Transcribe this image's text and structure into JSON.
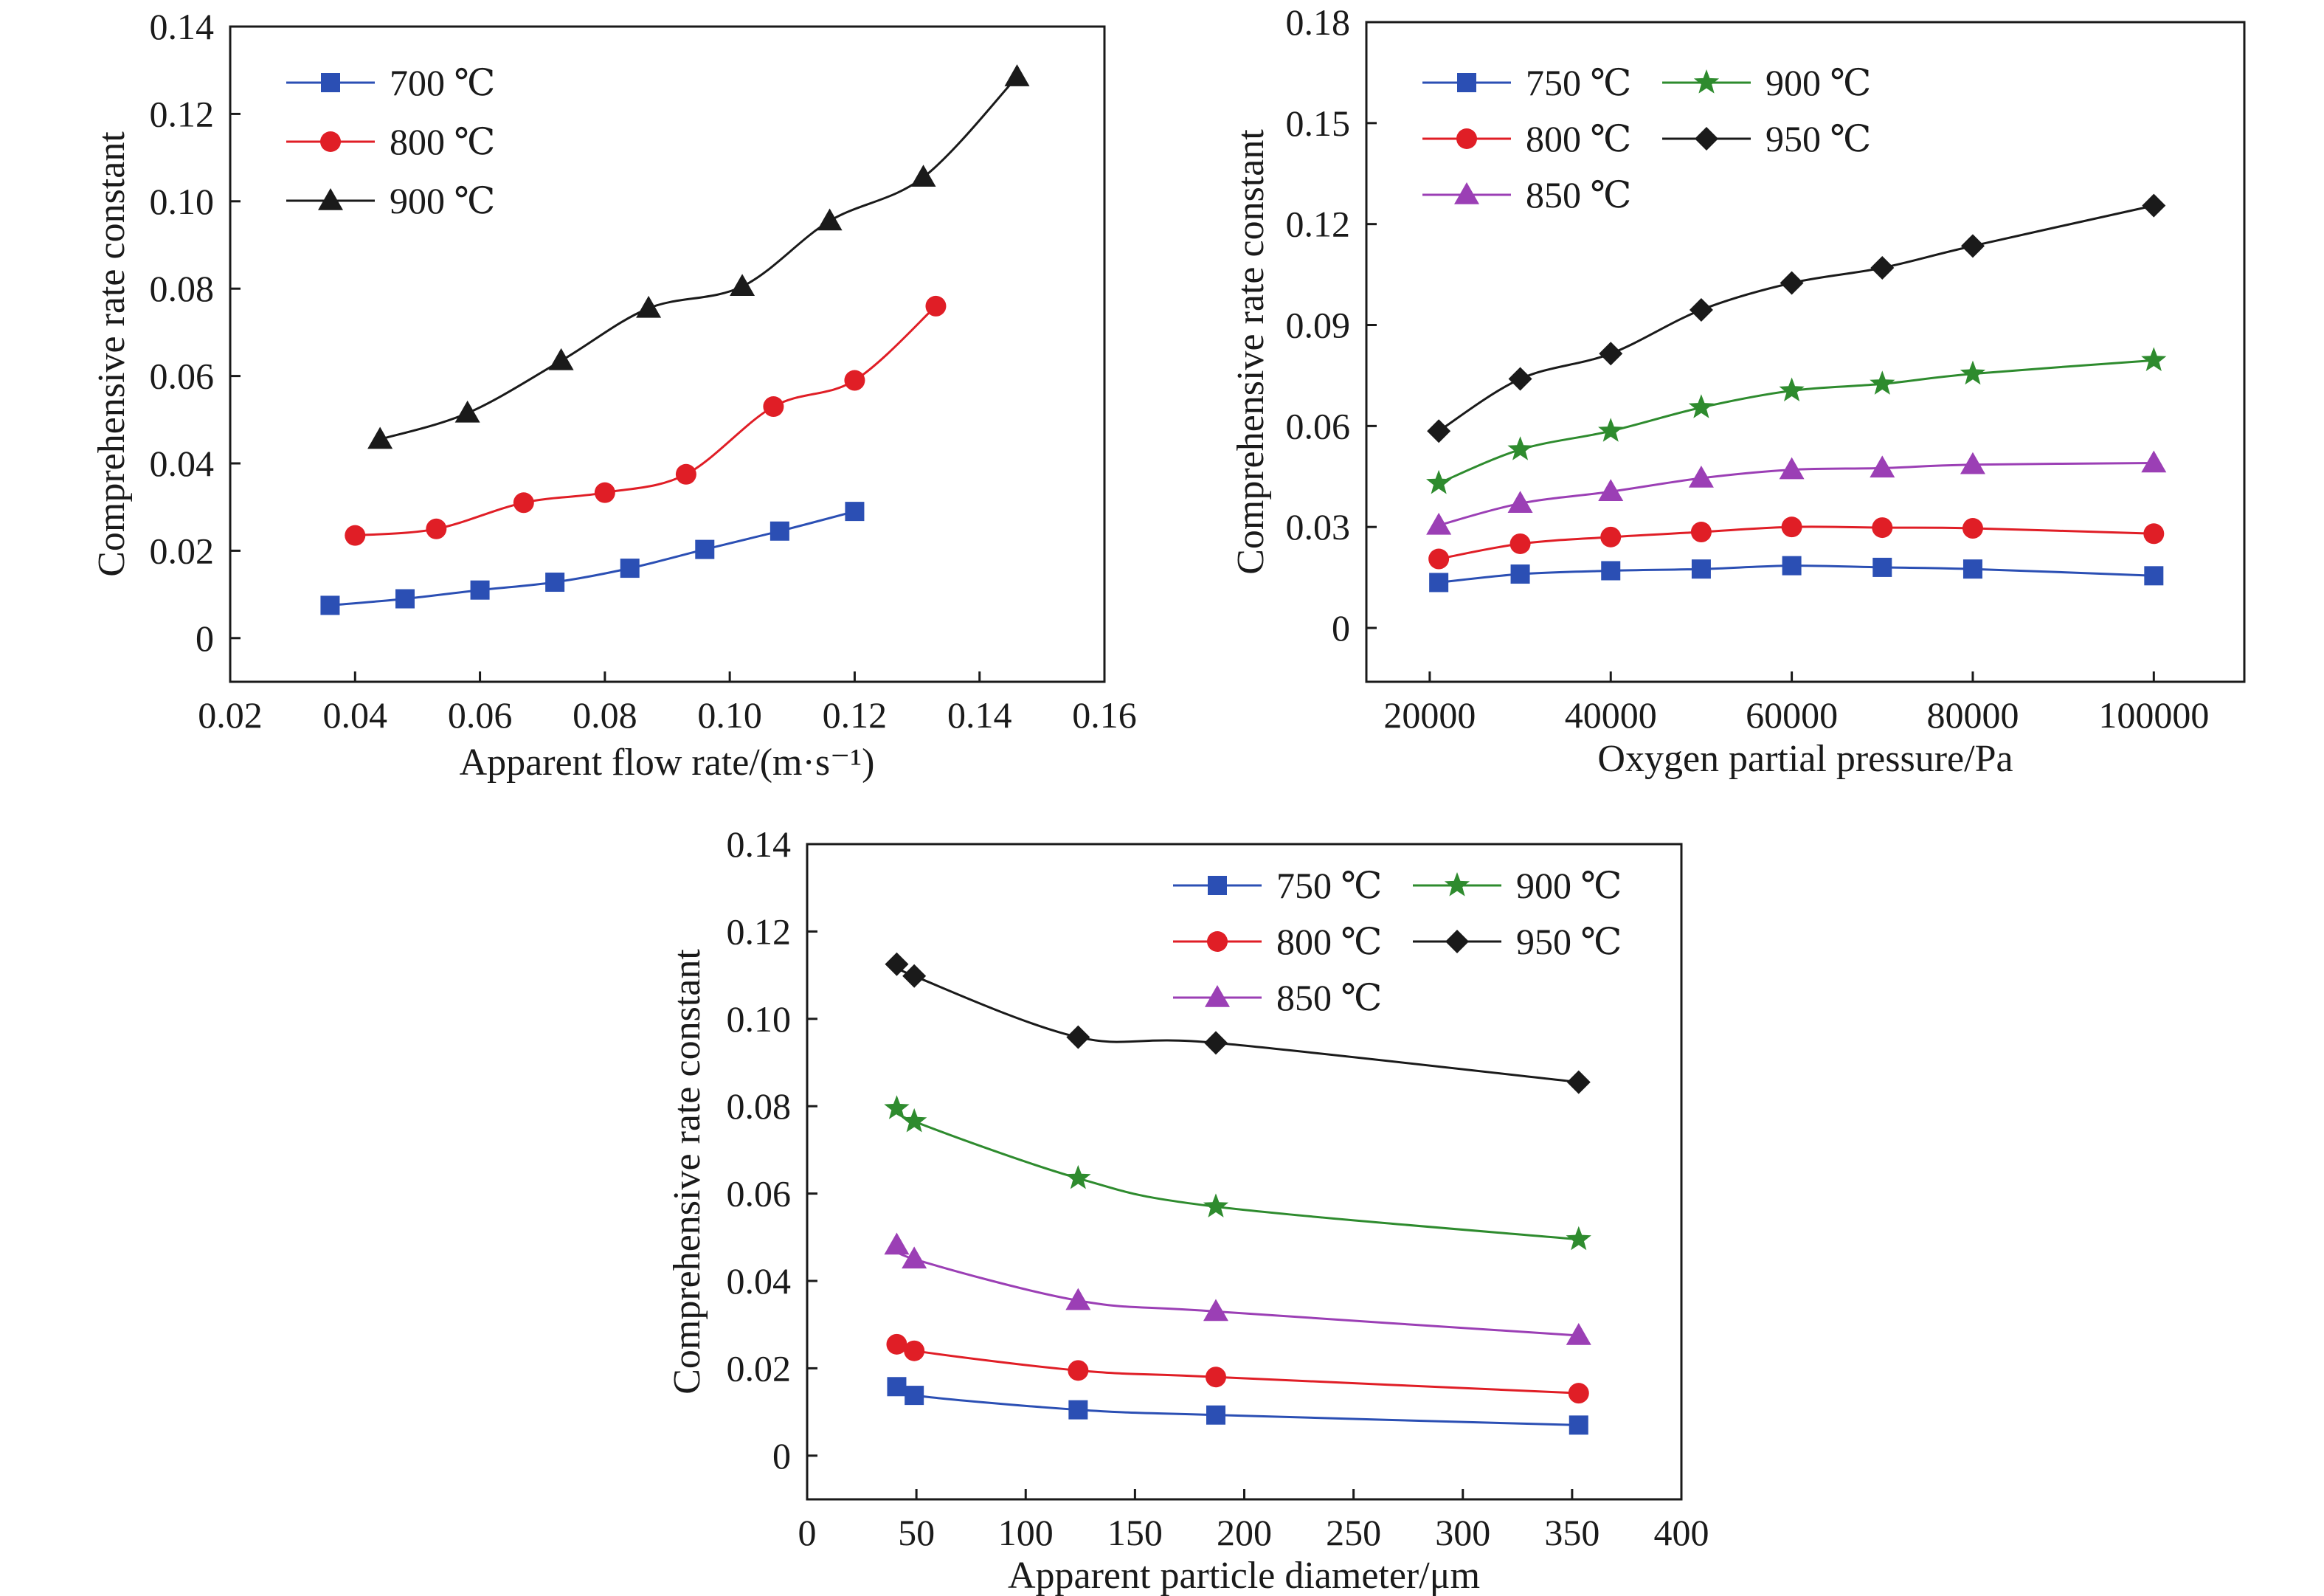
{
  "chart_data": [
    {
      "type": "line",
      "title": "",
      "xlabel": "Apparent flow rate/(m·s⁻¹)",
      "ylabel": "Comprehensive rate constant",
      "xlim": [
        0.02,
        0.16
      ],
      "ylim": [
        -0.01,
        0.14
      ],
      "xticks": [
        0.02,
        0.04,
        0.06,
        0.08,
        0.1,
        0.12,
        0.14,
        0.16
      ],
      "xtick_labels": [
        "0.02",
        "0.04",
        "0.06",
        "0.08",
        "0.10",
        "0.12",
        "0.14",
        "0.16"
      ],
      "yticks": [
        0,
        0.02,
        0.04,
        0.06,
        0.08,
        0.1,
        0.12,
        0.14
      ],
      "ytick_labels": [
        "0",
        "0.02",
        "0.04",
        "0.06",
        "0.08",
        "0.10",
        "0.12",
        "0.14"
      ],
      "grid": false,
      "legend_position": "top-left",
      "legend_columns": 1,
      "series": [
        {
          "name": "700 ℃",
          "color": "#2b4fb4",
          "marker": "square",
          "x": [
            0.036,
            0.048,
            0.06,
            0.072,
            0.084,
            0.096,
            0.108,
            0.12
          ],
          "y": [
            0.0075,
            0.009,
            0.011,
            0.0128,
            0.016,
            0.0203,
            0.0245,
            0.029
          ]
        },
        {
          "name": "800 ℃",
          "color": "#e01e26",
          "marker": "circle",
          "x": [
            0.04,
            0.053,
            0.067,
            0.08,
            0.093,
            0.107,
            0.12,
            0.133
          ],
          "y": [
            0.0235,
            0.025,
            0.031,
            0.0333,
            0.0375,
            0.053,
            0.059,
            0.076
          ]
        },
        {
          "name": "900 ℃",
          "color": "#1a1a1a",
          "marker": "triangle",
          "x": [
            0.044,
            0.058,
            0.073,
            0.087,
            0.102,
            0.116,
            0.131,
            0.146
          ],
          "y": [
            0.0455,
            0.0515,
            0.0635,
            0.0755,
            0.0805,
            0.0955,
            0.1055,
            0.1285
          ]
        }
      ]
    },
    {
      "type": "line",
      "title": "",
      "xlabel": "Oxygen partial pressure/Pa",
      "ylabel": "Comprehensive rate constant",
      "xlim": [
        13000,
        110000
      ],
      "ylim": [
        -0.016,
        0.18
      ],
      "xticks": [
        20000,
        40000,
        60000,
        80000,
        100000
      ],
      "xtick_labels": [
        "20000",
        "40000",
        "60000",
        "80000",
        "100000"
      ],
      "yticks": [
        0,
        0.03,
        0.06,
        0.09,
        0.12,
        0.15,
        0.18
      ],
      "ytick_labels": [
        "0",
        "0.03",
        "0.06",
        "0.09",
        "0.12",
        "0.15",
        "0.18"
      ],
      "grid": false,
      "legend_position": "top-left",
      "legend_columns": 2,
      "series": [
        {
          "name": "750 ℃",
          "color": "#2b4fb4",
          "marker": "square",
          "x": [
            21000,
            30000,
            40000,
            50000,
            60000,
            70000,
            80000,
            100000
          ],
          "y": [
            0.0135,
            0.016,
            0.017,
            0.0175,
            0.0185,
            0.018,
            0.0175,
            0.0155
          ]
        },
        {
          "name": "800 ℃",
          "color": "#e01e26",
          "marker": "circle",
          "x": [
            21000,
            30000,
            40000,
            50000,
            60000,
            70000,
            80000,
            100000
          ],
          "y": [
            0.0205,
            0.025,
            0.027,
            0.0285,
            0.03,
            0.0298,
            0.0296,
            0.028
          ]
        },
        {
          "name": "850 ℃",
          "color": "#9b3fb5",
          "marker": "triangle",
          "x": [
            21000,
            30000,
            40000,
            50000,
            60000,
            70000,
            80000,
            100000
          ],
          "y": [
            0.0305,
            0.037,
            0.0405,
            0.0445,
            0.047,
            0.0475,
            0.0485,
            0.049
          ]
        },
        {
          "name": "900 ℃",
          "color": "#2e8b2e",
          "marker": "star",
          "x": [
            21000,
            30000,
            40000,
            50000,
            60000,
            70000,
            80000,
            100000
          ],
          "y": [
            0.043,
            0.053,
            0.0585,
            0.0655,
            0.0705,
            0.0725,
            0.0755,
            0.0795
          ]
        },
        {
          "name": "950 ℃",
          "color": "#1a1a1a",
          "marker": "diamond",
          "x": [
            21000,
            30000,
            40000,
            50000,
            60000,
            70000,
            80000,
            100000
          ],
          "y": [
            0.0585,
            0.074,
            0.0815,
            0.0945,
            0.1025,
            0.107,
            0.1135,
            0.1255
          ]
        }
      ]
    },
    {
      "type": "line",
      "title": "",
      "xlabel": "Apparent particle diameter/μm",
      "ylabel": "Comprehensive rate constant",
      "xlim": [
        0,
        400
      ],
      "ylim": [
        -0.01,
        0.14
      ],
      "xticks": [
        0,
        50,
        100,
        150,
        200,
        250,
        300,
        350,
        400
      ],
      "xtick_labels": [
        "0",
        "50",
        "100",
        "150",
        "200",
        "250",
        "300",
        "350",
        "400"
      ],
      "yticks": [
        0,
        0.02,
        0.04,
        0.06,
        0.08,
        0.1,
        0.12,
        0.14
      ],
      "ytick_labels": [
        "0",
        "0.02",
        "0.04",
        "0.06",
        "0.08",
        "0.10",
        "0.12",
        "0.14"
      ],
      "grid": false,
      "legend_position": "top-right",
      "legend_columns": 2,
      "series": [
        {
          "name": "750 ℃",
          "color": "#2b4fb4",
          "marker": "square",
          "x": [
            41,
            49,
            124,
            187,
            353
          ],
          "y": [
            0.0158,
            0.0138,
            0.0105,
            0.0093,
            0.007
          ]
        },
        {
          "name": "800 ℃",
          "color": "#e01e26",
          "marker": "circle",
          "x": [
            41,
            49,
            124,
            187,
            353
          ],
          "y": [
            0.0255,
            0.024,
            0.0195,
            0.018,
            0.0143
          ]
        },
        {
          "name": "850 ℃",
          "color": "#9b3fb5",
          "marker": "triangle",
          "x": [
            41,
            49,
            124,
            187,
            353
          ],
          "y": [
            0.0482,
            0.045,
            0.0355,
            0.033,
            0.0275
          ]
        },
        {
          "name": "900 ℃",
          "color": "#2e8b2e",
          "marker": "star",
          "x": [
            41,
            49,
            124,
            187,
            353
          ],
          "y": [
            0.0795,
            0.0765,
            0.0635,
            0.057,
            0.0495
          ]
        },
        {
          "name": "950 ℃",
          "color": "#1a1a1a",
          "marker": "diamond",
          "x": [
            41,
            49,
            124,
            187,
            353
          ],
          "y": [
            0.1125,
            0.1098,
            0.0958,
            0.0945,
            0.0855
          ]
        }
      ]
    }
  ]
}
